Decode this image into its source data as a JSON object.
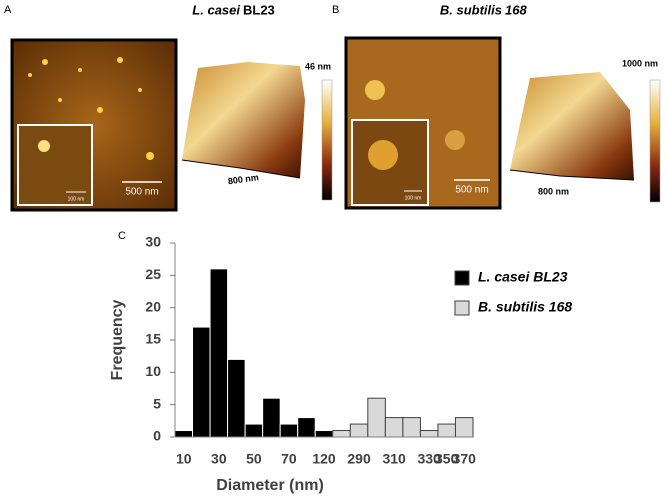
{
  "panels": [
    {
      "label": "A",
      "species": "L. casei",
      "strain": "BL23",
      "height_scale": "46 nm",
      "scale_bar": "500 nm",
      "inset_scale": "100 nm",
      "size": "800 nm"
    },
    {
      "label": "B",
      "species": "B. subtilis",
      "strain": "168",
      "height_scale": "1000 nm",
      "scale_bar": "500 nm",
      "inset_scale": "100 nm",
      "size": "800 nm"
    }
  ],
  "panel_c": "C",
  "chart_data": {
    "type": "bar",
    "x_label": "Diameter (nm)",
    "y_label": "Frequency",
    "categories": [
      "10",
      null,
      "30",
      null,
      "50",
      null,
      "70",
      null,
      "120",
      null,
      "290",
      null,
      "310",
      null,
      "330",
      "350",
      "370"
    ],
    "series": [
      {
        "name": "L. casei BL23",
        "color": "#000000",
        "values": [
          1,
          17,
          26,
          12,
          2,
          6,
          2,
          3,
          1,
          null,
          null,
          null,
          null,
          null,
          null,
          null,
          null
        ]
      },
      {
        "name": "B. subtilis 168",
        "color": "#d9d9d9",
        "values": [
          null,
          null,
          null,
          null,
          null,
          null,
          null,
          null,
          null,
          1,
          2,
          6,
          3,
          3,
          1,
          2,
          3
        ]
      }
    ],
    "ylim": [
      0,
      30
    ],
    "yticks": [
      0,
      5,
      10,
      15,
      20,
      25,
      30
    ],
    "grid": false
  }
}
